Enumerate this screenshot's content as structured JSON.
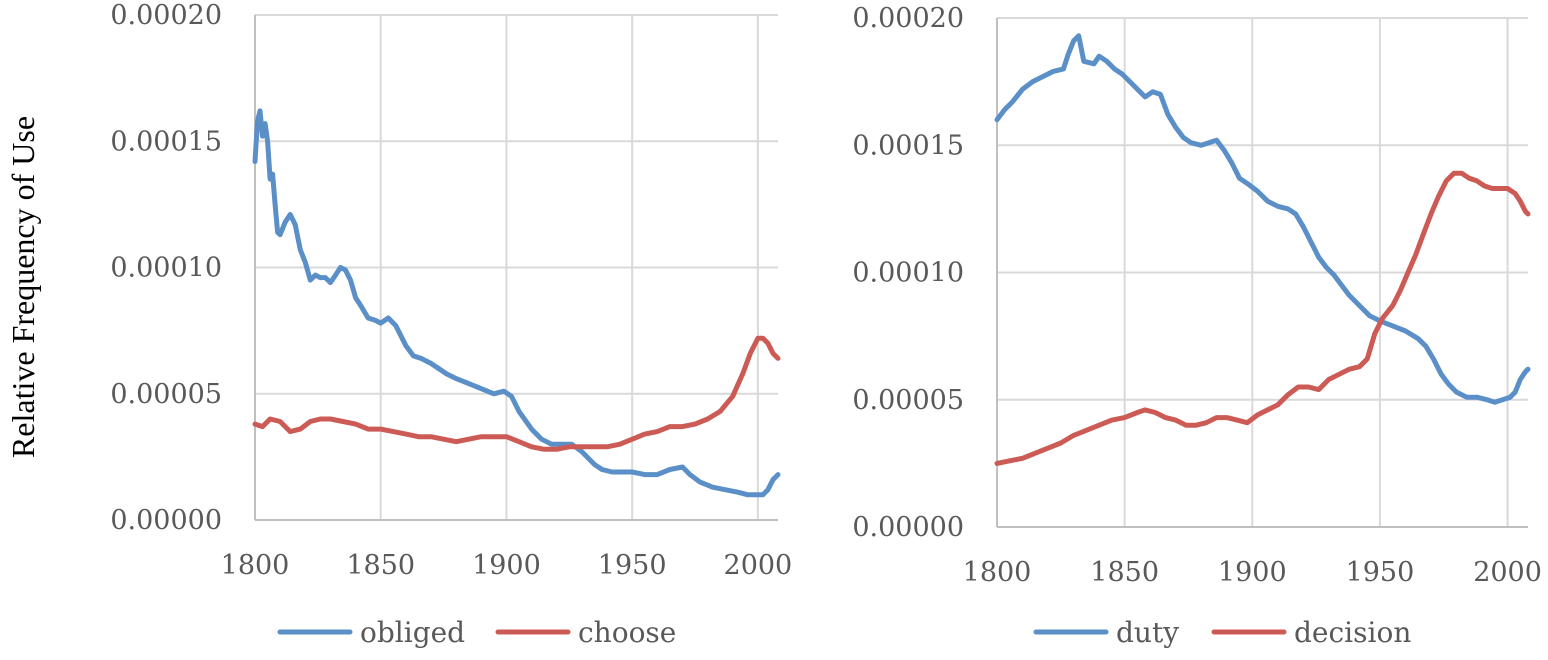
{
  "ylabel": "Relative Frequency of Use",
  "colors": {
    "blue": "#5b8fc7",
    "red": "#cc5b55"
  },
  "chart_data": [
    {
      "type": "line",
      "title": "",
      "xlabel": "",
      "ylabel": "Relative Frequency of Use",
      "xlim": [
        1800,
        2008
      ],
      "ylim": [
        0,
        0.0002
      ],
      "x_ticks": [
        "1800",
        "1850",
        "1900",
        "1950",
        "2000"
      ],
      "y_ticks": [
        "0.00000",
        "0.00005",
        "0.00010",
        "0.00015",
        "0.00020"
      ],
      "grid": true,
      "legend": "bottom",
      "series": [
        {
          "name": "obliged",
          "color": "#5b8fc7",
          "points": [
            [
              1800,
              0.000142
            ],
            [
              1801,
              0.000158
            ],
            [
              1802,
              0.000162
            ],
            [
              1803,
              0.000152
            ],
            [
              1804,
              0.000157
            ],
            [
              1805,
              0.00015
            ],
            [
              1806,
              0.000135
            ],
            [
              1807,
              0.000137
            ],
            [
              1808,
              0.000125
            ],
            [
              1809,
              0.000114
            ],
            [
              1810,
              0.000113
            ],
            [
              1812,
              0.000118
            ],
            [
              1814,
              0.000121
            ],
            [
              1816,
              0.000117
            ],
            [
              1818,
              0.000107
            ],
            [
              1820,
              0.000102
            ],
            [
              1822,
              9.5e-05
            ],
            [
              1824,
              9.7e-05
            ],
            [
              1826,
              9.6e-05
            ],
            [
              1828,
              9.6e-05
            ],
            [
              1830,
              9.4e-05
            ],
            [
              1832,
              9.7e-05
            ],
            [
              1834,
              0.0001
            ],
            [
              1836,
              9.9e-05
            ],
            [
              1838,
              9.5e-05
            ],
            [
              1840,
              8.8e-05
            ],
            [
              1842,
              8.5e-05
            ],
            [
              1845,
              8e-05
            ],
            [
              1848,
              7.9e-05
            ],
            [
              1850,
              7.8e-05
            ],
            [
              1853,
              8e-05
            ],
            [
              1856,
              7.7e-05
            ],
            [
              1860,
              6.9e-05
            ],
            [
              1863,
              6.5e-05
            ],
            [
              1866,
              6.4e-05
            ],
            [
              1870,
              6.2e-05
            ],
            [
              1873,
              6e-05
            ],
            [
              1876,
              5.8e-05
            ],
            [
              1880,
              5.6e-05
            ],
            [
              1885,
              5.4e-05
            ],
            [
              1890,
              5.2e-05
            ],
            [
              1895,
              5e-05
            ],
            [
              1899,
              5.1e-05
            ],
            [
              1902,
              4.9e-05
            ],
            [
              1905,
              4.3e-05
            ],
            [
              1910,
              3.6e-05
            ],
            [
              1914,
              3.2e-05
            ],
            [
              1918,
              3e-05
            ],
            [
              1922,
              3e-05
            ],
            [
              1926,
              3e-05
            ],
            [
              1930,
              2.7e-05
            ],
            [
              1935,
              2.2e-05
            ],
            [
              1938,
              2e-05
            ],
            [
              1942,
              1.9e-05
            ],
            [
              1950,
              1.9e-05
            ],
            [
              1955,
              1.8e-05
            ],
            [
              1960,
              1.8e-05
            ],
            [
              1965,
              2e-05
            ],
            [
              1970,
              2.1e-05
            ],
            [
              1973,
              1.8e-05
            ],
            [
              1977,
              1.5e-05
            ],
            [
              1982,
              1.3e-05
            ],
            [
              1987,
              1.2e-05
            ],
            [
              1992,
              1.1e-05
            ],
            [
              1996,
              1e-05
            ],
            [
              2000,
              1e-05
            ],
            [
              2002,
              1e-05
            ],
            [
              2004,
              1.2e-05
            ],
            [
              2006,
              1.6e-05
            ],
            [
              2008,
              1.8e-05
            ]
          ]
        },
        {
          "name": "choose",
          "color": "#cc5b55",
          "points": [
            [
              1800,
              3.8e-05
            ],
            [
              1803,
              3.7e-05
            ],
            [
              1806,
              4e-05
            ],
            [
              1810,
              3.9e-05
            ],
            [
              1814,
              3.5e-05
            ],
            [
              1818,
              3.6e-05
            ],
            [
              1822,
              3.9e-05
            ],
            [
              1826,
              4e-05
            ],
            [
              1830,
              4e-05
            ],
            [
              1835,
              3.9e-05
            ],
            [
              1840,
              3.8e-05
            ],
            [
              1845,
              3.6e-05
            ],
            [
              1850,
              3.6e-05
            ],
            [
              1855,
              3.5e-05
            ],
            [
              1860,
              3.4e-05
            ],
            [
              1865,
              3.3e-05
            ],
            [
              1870,
              3.3e-05
            ],
            [
              1875,
              3.2e-05
            ],
            [
              1880,
              3.1e-05
            ],
            [
              1885,
              3.2e-05
            ],
            [
              1890,
              3.3e-05
            ],
            [
              1895,
              3.3e-05
            ],
            [
              1900,
              3.3e-05
            ],
            [
              1905,
              3.1e-05
            ],
            [
              1910,
              2.9e-05
            ],
            [
              1915,
              2.8e-05
            ],
            [
              1920,
              2.8e-05
            ],
            [
              1925,
              2.9e-05
            ],
            [
              1930,
              2.9e-05
            ],
            [
              1935,
              2.9e-05
            ],
            [
              1940,
              2.9e-05
            ],
            [
              1945,
              3e-05
            ],
            [
              1950,
              3.2e-05
            ],
            [
              1955,
              3.4e-05
            ],
            [
              1960,
              3.5e-05
            ],
            [
              1965,
              3.7e-05
            ],
            [
              1970,
              3.7e-05
            ],
            [
              1975,
              3.8e-05
            ],
            [
              1980,
              4e-05
            ],
            [
              1985,
              4.3e-05
            ],
            [
              1990,
              4.9e-05
            ],
            [
              1994,
              5.8e-05
            ],
            [
              1997,
              6.6e-05
            ],
            [
              2000,
              7.2e-05
            ],
            [
              2002,
              7.2e-05
            ],
            [
              2004,
              7e-05
            ],
            [
              2006,
              6.6e-05
            ],
            [
              2008,
              6.4e-05
            ]
          ]
        }
      ]
    },
    {
      "type": "line",
      "title": "",
      "xlabel": "",
      "ylabel": "",
      "xlim": [
        1800,
        2008
      ],
      "ylim": [
        0,
        0.0002
      ],
      "x_ticks": [
        "1800",
        "1850",
        "1900",
        "1950",
        "2000"
      ],
      "y_ticks": [
        "0.00000",
        "0.00005",
        "0.00010",
        "0.00015",
        "0.00020"
      ],
      "grid": true,
      "legend": "bottom",
      "series": [
        {
          "name": "duty",
          "color": "#5b8fc7",
          "points": [
            [
              1800,
              0.00016
            ],
            [
              1803,
              0.000164
            ],
            [
              1806,
              0.000167
            ],
            [
              1810,
              0.000172
            ],
            [
              1814,
              0.000175
            ],
            [
              1818,
              0.000177
            ],
            [
              1822,
              0.000179
            ],
            [
              1826,
              0.00018
            ],
            [
              1828,
              0.000186
            ],
            [
              1830,
              0.000191
            ],
            [
              1832,
              0.000193
            ],
            [
              1834,
              0.000183
            ],
            [
              1838,
              0.000182
            ],
            [
              1840,
              0.000185
            ],
            [
              1843,
              0.000183
            ],
            [
              1846,
              0.00018
            ],
            [
              1849,
              0.000178
            ],
            [
              1852,
              0.000175
            ],
            [
              1855,
              0.000172
            ],
            [
              1858,
              0.000169
            ],
            [
              1861,
              0.000171
            ],
            [
              1864,
              0.00017
            ],
            [
              1867,
              0.000162
            ],
            [
              1870,
              0.000157
            ],
            [
              1873,
              0.000153
            ],
            [
              1876,
              0.000151
            ],
            [
              1880,
              0.00015
            ],
            [
              1883,
              0.000151
            ],
            [
              1886,
              0.000152
            ],
            [
              1889,
              0.000148
            ],
            [
              1892,
              0.000143
            ],
            [
              1895,
              0.000137
            ],
            [
              1898,
              0.000135
            ],
            [
              1902,
              0.000132
            ],
            [
              1906,
              0.000128
            ],
            [
              1910,
              0.000126
            ],
            [
              1914,
              0.000125
            ],
            [
              1917,
              0.000123
            ],
            [
              1920,
              0.000118
            ],
            [
              1923,
              0.000112
            ],
            [
              1926,
              0.000106
            ],
            [
              1929,
              0.000102
            ],
            [
              1932,
              9.9e-05
            ],
            [
              1935,
              9.5e-05
            ],
            [
              1938,
              9.1e-05
            ],
            [
              1942,
              8.7e-05
            ],
            [
              1946,
              8.3e-05
            ],
            [
              1950,
              8.1e-05
            ],
            [
              1955,
              7.9e-05
            ],
            [
              1960,
              7.7e-05
            ],
            [
              1965,
              7.4e-05
            ],
            [
              1968,
              7.1e-05
            ],
            [
              1971,
              6.6e-05
            ],
            [
              1974,
              6e-05
            ],
            [
              1977,
              5.6e-05
            ],
            [
              1980,
              5.3e-05
            ],
            [
              1984,
              5.1e-05
            ],
            [
              1988,
              5.1e-05
            ],
            [
              1992,
              5e-05
            ],
            [
              1995,
              4.9e-05
            ],
            [
              1998,
              5e-05
            ],
            [
              2001,
              5.1e-05
            ],
            [
              2003,
              5.3e-05
            ],
            [
              2005,
              5.8e-05
            ],
            [
              2007,
              6.1e-05
            ],
            [
              2008,
              6.2e-05
            ]
          ]
        },
        {
          "name": "decision",
          "color": "#cc5b55",
          "points": [
            [
              1800,
              2.5e-05
            ],
            [
              1805,
              2.6e-05
            ],
            [
              1810,
              2.7e-05
            ],
            [
              1815,
              2.9e-05
            ],
            [
              1820,
              3.1e-05
            ],
            [
              1825,
              3.3e-05
            ],
            [
              1830,
              3.6e-05
            ],
            [
              1835,
              3.8e-05
            ],
            [
              1840,
              4e-05
            ],
            [
              1845,
              4.2e-05
            ],
            [
              1850,
              4.3e-05
            ],
            [
              1855,
              4.5e-05
            ],
            [
              1858,
              4.6e-05
            ],
            [
              1862,
              4.5e-05
            ],
            [
              1866,
              4.3e-05
            ],
            [
              1870,
              4.2e-05
            ],
            [
              1874,
              4e-05
            ],
            [
              1878,
              4e-05
            ],
            [
              1882,
              4.1e-05
            ],
            [
              1886,
              4.3e-05
            ],
            [
              1890,
              4.3e-05
            ],
            [
              1894,
              4.2e-05
            ],
            [
              1898,
              4.1e-05
            ],
            [
              1902,
              4.4e-05
            ],
            [
              1906,
              4.6e-05
            ],
            [
              1910,
              4.8e-05
            ],
            [
              1914,
              5.2e-05
            ],
            [
              1918,
              5.5e-05
            ],
            [
              1922,
              5.5e-05
            ],
            [
              1926,
              5.4e-05
            ],
            [
              1930,
              5.8e-05
            ],
            [
              1934,
              6e-05
            ],
            [
              1938,
              6.2e-05
            ],
            [
              1942,
              6.3e-05
            ],
            [
              1945,
              6.6e-05
            ],
            [
              1948,
              7.6e-05
            ],
            [
              1951,
              8.2e-05
            ],
            [
              1955,
              8.7e-05
            ],
            [
              1958,
              9.3e-05
            ],
            [
              1961,
              0.0001
            ],
            [
              1964,
              0.000107
            ],
            [
              1967,
              0.000115
            ],
            [
              1970,
              0.000123
            ],
            [
              1973,
              0.00013
            ],
            [
              1976,
              0.000136
            ],
            [
              1979,
              0.000139
            ],
            [
              1982,
              0.000139
            ],
            [
              1985,
              0.000137
            ],
            [
              1988,
              0.000136
            ],
            [
              1991,
              0.000134
            ],
            [
              1994,
              0.000133
            ],
            [
              1997,
              0.000133
            ],
            [
              2000,
              0.000133
            ],
            [
              2003,
              0.000131
            ],
            [
              2005,
              0.000128
            ],
            [
              2007,
              0.000124
            ],
            [
              2008,
              0.000123
            ]
          ]
        }
      ]
    }
  ]
}
